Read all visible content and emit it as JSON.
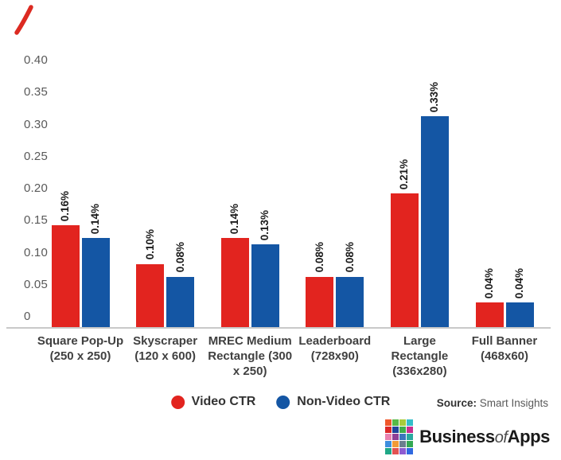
{
  "annotation_mark": {
    "color": "#DC2A21"
  },
  "chart_data": {
    "type": "bar",
    "title": "",
    "categories": [
      "Square Pop-Up (250 x 250)",
      "Skyscraper (120 x 600)",
      "MREC Medium Rectangle (300 x 250)",
      "Leaderboard (728x90)",
      "Large Rectangle (336x280)",
      "Full Banner (468x60)"
    ],
    "series": [
      {
        "name": "Video CTR",
        "color": "#E2241F",
        "values": [
          0.16,
          0.1,
          0.14,
          0.08,
          0.21,
          0.04
        ],
        "labels": [
          "0.16%",
          "0.10%",
          "0.14%",
          "0.08%",
          "0.21%",
          "0.04%"
        ]
      },
      {
        "name": "Non-Video CTR",
        "color": "#1456A4",
        "values": [
          0.14,
          0.08,
          0.13,
          0.08,
          0.33,
          0.04
        ],
        "labels": [
          "0.14%",
          "0.08%",
          "0.13%",
          "0.08%",
          "0.33%",
          "0.04%"
        ]
      }
    ],
    "xlabel": "",
    "ylabel": "",
    "ylim": [
      0,
      0.4
    ],
    "ytick_values": [
      0.4,
      0.35,
      0.3,
      0.25,
      0.2,
      0.15,
      0.1,
      0.05,
      0
    ],
    "ytick_labels": [
      "0.40",
      "0.35",
      "0.30",
      "0.25",
      "0.20",
      "0.15",
      "0.10",
      "0.05",
      "0"
    ],
    "grid": false,
    "legend_position": "bottom-center",
    "axis_color": "#C9C9C9",
    "tick_label_color": "#595959",
    "category_label_color": "#404040",
    "value_label_color": "#1A1A1A"
  },
  "source": {
    "prefix": "Source:",
    "text": "Smart Insights"
  },
  "logo": {
    "part1": "Business",
    "part2": "of",
    "part3": "Apps",
    "grid_colors": [
      "#F0582B",
      "#57B947",
      "#A8CC3A",
      "#35BDC9",
      "#DC2828",
      "#20449B",
      "#3FAE49",
      "#C82E8E",
      "#E981B0",
      "#8F3F97",
      "#3B76BC",
      "#2AA9A0",
      "#3E8EDE",
      "#F29A36",
      "#6B7F8E",
      "#34A853",
      "#1FA886",
      "#E25252",
      "#8E5BD1",
      "#3069E0"
    ]
  }
}
